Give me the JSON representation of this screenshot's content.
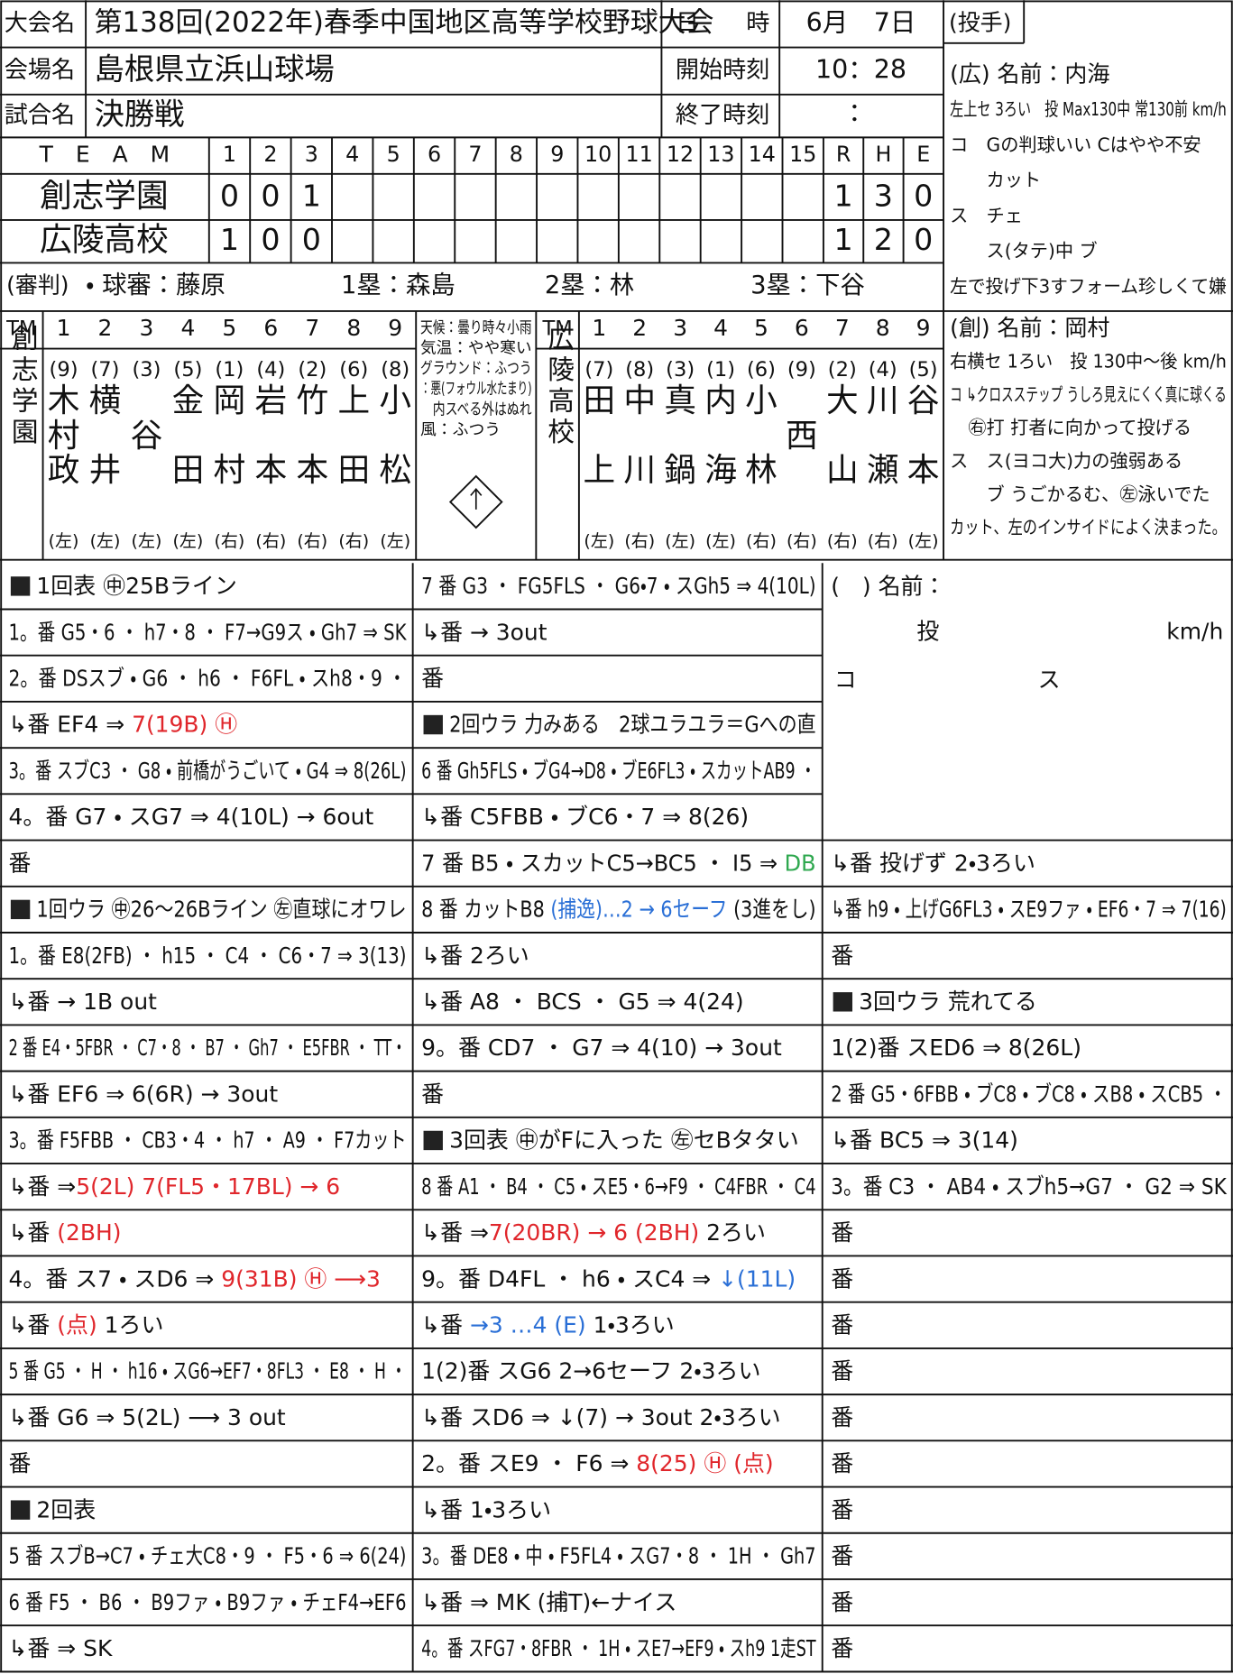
{
  "header": {
    "tournament_label": "大会名",
    "tournament": "第138回(2022年)春季中国地区高等学校野球大会",
    "venue_label": "会場名",
    "venue": "島根県立浜山球場",
    "game_label": "試合名",
    "game": "決勝戦",
    "date_label": "日　　時",
    "date": "6月　7日",
    "start_label": "開始時刻",
    "start": "10：28",
    "end_label": "終了時刻",
    "end": "：",
    "pitcher_label": "(投手)"
  },
  "line_score": {
    "headers": [
      "T　E　A　M",
      "1",
      "2",
      "3",
      "4",
      "5",
      "6",
      "7",
      "8",
      "9",
      "10",
      "11",
      "12",
      "13",
      "14",
      "15",
      "R",
      "H",
      "E"
    ],
    "teams": [
      {
        "name": "創志学園",
        "innings": [
          "0",
          "0",
          "1"
        ],
        "totals": [
          "1",
          "3",
          "0"
        ]
      },
      {
        "name": "広陵高校",
        "innings": [
          "1",
          "0",
          "0"
        ],
        "totals": [
          "1",
          "2",
          "0"
        ]
      }
    ]
  },
  "umpires": {
    "label": "(審判)",
    "plate": "・ 球審：藤原",
    "first": "1塁：森島",
    "second": "2塁：林",
    "third": "3塁：下谷"
  },
  "lineups": {
    "tm_label": "TM",
    "numbers": [
      "1",
      "2",
      "3",
      "4",
      "5",
      "6",
      "7",
      "8",
      "9"
    ],
    "teams": [
      {
        "team": "創志学園",
        "positions": [
          "(9)",
          "(7)",
          "(3)",
          "(5)",
          "(1)",
          "(4)",
          "(2)",
          "(6)",
          "(8)"
        ],
        "players": [
          "木村政",
          "横井",
          "谷",
          "金田",
          "岡村",
          "岩本",
          "竹本",
          "上田",
          "小松"
        ],
        "hands": [
          "(左)",
          "(左)",
          "(左)",
          "(左)",
          "(右)",
          "(右)",
          "(右)",
          "(右)",
          "(左)"
        ]
      },
      {
        "team": "広陵高校",
        "positions": [
          "(7)",
          "(8)",
          "(3)",
          "(1)",
          "(6)",
          "(9)",
          "(2)",
          "(4)",
          "(5)"
        ],
        "players": [
          "田上",
          "中川",
          "真鍋",
          "内海",
          "小林",
          "西",
          "大山",
          "川瀬",
          "谷本"
        ],
        "hands": [
          "(左)",
          "(右)",
          "(左)",
          "(左)",
          "(右)",
          "(右)",
          "(右)",
          "(右)",
          "(左)"
        ]
      }
    ],
    "weather": [
      "天候：曇り時々小雨",
      "気温：やや寒い",
      "グラウンド：ふつう",
      "：悪(フォウル水たまり)",
      "　内スベる外はぬれ",
      "風：ふつう"
    ]
  },
  "pitchers": [
    {
      "lines": [
        "(広) 名前：内海",
        "左上セ 3ろい　投 Max130中 常130前 km/h",
        "コ　Gの判球いい Cはやや不安",
        "　　カット",
        "ス　チェ",
        "　　ス(タテ)中 ブ",
        "左で投げ下3すフォーム珍しくて嫌"
      ]
    },
    {
      "lines": [
        "(創) 名前：岡村",
        "右横セ 1ろい　投 130中〜後 km/h",
        "コ ↳クロスステップ うしろ見えにくく真に球くる",
        "　㊨打 打者に向かって投げる",
        "ス　ス(ヨコ大)力の強弱ある",
        "　　ブ うごかるむ、㊧泳いでた",
        "カット、左のインサイドによく決まった。"
      ]
    }
  ],
  "blank_pitcher": {
    "name_label": "(　) 名前：",
    "pitch": "投",
    "unit": "km/h",
    "control": "コ",
    "breaking": "ス"
  },
  "plays": [
    [
      "1回表 ㊥25Bライン",
      "1。番 G5・6 ・ h7・8 ・ F7→G9ス ・ Gh7 ⇒ SK",
      "2。番 DSスブ ・ G6 ・ h6 ・ F6FL ・ スh8・9 ・",
      [
        "↳番 EF4 ⇒ ",
        {
          "text": "7(19B) Ⓗ",
          "color": "#e0262b"
        }
      ],
      "3。番 スブC3 ・ G8 ・ 前橋がうごいて ・ G4 ⇒ 8(26L)",
      "4。番 G7 ・ スG7 ⇒ 4(10L) → 6out",
      "番",
      "1回ウラ ㊥26〜26Bライン ㊧直球にオワレ",
      "1。番 E8(2FB) ・ h15 ・ C4 ・ C6・7 ⇒ 3(13)",
      "↳番 → 1B out",
      "2 番 E4・5FBR ・ C7・8 ・ B7 ・ Gh7 ・ E5FBR ・ TT・",
      "↳番 EF6 ⇒ 6(6R) → 3out",
      "3。番 F5FBB ・ CB3・4 ・ h7 ・ A9 ・ F7カット",
      [
        "↳番 ⇒",
        {
          "text": "5(2L) 7(FL5・17BL) → 6",
          "color": "#e0262b"
        }
      ],
      [
        "↳番 ",
        {
          "text": "(2BH)",
          "color": "#e0262b"
        }
      ],
      [
        "4。番 ス7 ・ スD6 ⇒ ",
        {
          "text": "9(31B) Ⓗ ⟶3",
          "color": "#e0262b"
        }
      ],
      [
        "↳番 ",
        {
          "text": "(点)",
          "color": "#e0262b"
        },
        " 1ろい"
      ],
      "5 番 G5 ・ H ・ h16 ・ スG6→EF7・8FL3 ・ E8 ・ H ・",
      "↳番 G6 ⇒ 5(2L) ⟶ 3 out",
      "番",
      "2回表",
      "5 番 スブB→C7 ・ チェ大C8・9 ・ F5・6 ⇒ 6(24)",
      "6 番 F5 ・ B6 ・ B9ファ ・ B9ファ ・ チェF4→EF6",
      "↳番 ⇒ SK"
    ],
    [
      "7 番 G3 ・ FG5FLS ・ G6・7 ・ スGh5 ⇒ 4(10L)",
      "↳番 → 3out",
      "番",
      "2回ウラ 力みある　2球ユラユラ＝Gへの直",
      "6 番 Gh5FLS ・ ブG4→D8 ・ ブE6FL3 ・ スカットAB9 ・",
      "↳番 C5FBB ・ ブC6・7 ⇒ 8(26)",
      [
        "7 番 B5 ・ スカットC5→BC5 ・ I5 ⇒ ",
        {
          "text": "DB",
          "color": "#2fa84f"
        }
      ],
      [
        "8 番 カットB8 ",
        {
          "text": "(捕逸)…2 → 6セーフ",
          "color": "#2a6fd6"
        },
        " (3進をし)"
      ],
      "↳番 2ろい",
      "↳番 A8 ・ BCS ・ G5 ⇒ 4(24)",
      "9。番 CD7 ・ G7 ⇒ 4(10) → 3out",
      "番",
      "3回表 ㊥がFに入った ㊧セBタタい",
      "8 番 A1 ・ B4 ・ C5 ・ スE5・6→F9 ・ C4FBR ・ C4",
      [
        "↳番 ⇒",
        {
          "text": "7(20BR) → 6 (2BH)",
          "color": "#e0262b"
        },
        " 2ろい"
      ],
      [
        "9。番 D4FL ・ h6 ・ スC4 ⇒ ",
        {
          "text": "↓(11L)",
          "color": "#2a6fd6"
        }
      ],
      [
        "↳番 ",
        {
          "text": "→3 …4 (E)",
          "color": "#2a6fd6"
        },
        " 1・3ろい"
      ],
      "1(2)番 スG6 2→6セーフ 2・3ろい",
      "↳番 スD6 ⇒ ↓(7) → 3out 2・3ろい",
      [
        "2。番 スE9 ・ F6 ⇒ ",
        {
          "text": "8(25) Ⓗ (点)",
          "color": "#e0262b"
        }
      ],
      "↳番 1・3ろい",
      "3。番 DE8 ・ 中 ・ F5FL4 ・ スG7・8 ・ 1H ・ Gh7",
      "↳番 ⇒ MK (捕T)←ナイス",
      "4。番 スFG7・8FBR ・ 1H ・ スE7→EF9 ・ スh9 1走ST"
    ],
    [
      "↳番 投げず 2・3ろい",
      "↳番 h9 ・ 上げG6FL3 ・ スE9ファ ・ EF6・7 ⇒ 7(16)",
      "番",
      "3回ウラ 荒れてる",
      "1(2)番 スED6 ⇒ 8(26L)",
      "2 番 G5・6FBB ・ ブC8 ・ ブC8 ・ スB8 ・ スCB5 ・",
      "↳番 BC5 ⇒ 3(14)",
      "3。番 C3 ・ AB4 ・ スブh5→G7 ・ G2 ⇒ SK",
      "番",
      "番",
      "番",
      "番",
      "番",
      "番",
      "番",
      "番",
      "番",
      "番"
    ]
  ]
}
